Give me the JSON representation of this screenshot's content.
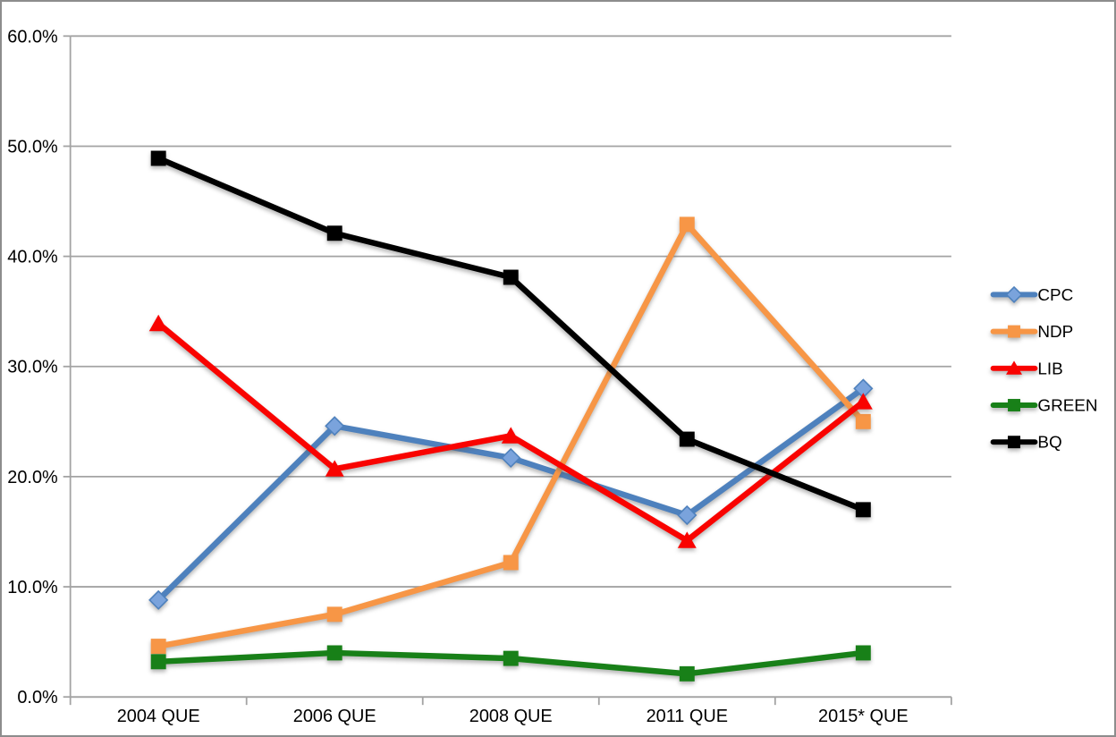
{
  "chart_data": {
    "type": "line",
    "title": "",
    "categories": [
      "2004 QUE",
      "2006 QUE",
      "2008 QUE",
      "2011 QUE",
      "2015* QUE"
    ],
    "y_axis": {
      "min": 0,
      "max": 60,
      "step": 10,
      "tick_labels": [
        "0.0%",
        "10.0%",
        "20.0%",
        "30.0%",
        "40.0%",
        "50.0%",
        "60.0%"
      ]
    },
    "grid": true,
    "legend_position": "right",
    "series": [
      {
        "name": "CPC",
        "color": "#4E81BD",
        "marker": "diamond",
        "marker_fill": "#7AA3DC",
        "values": [
          8.8,
          24.6,
          21.7,
          16.5,
          28.0
        ]
      },
      {
        "name": "NDP",
        "color": "#F79646",
        "marker": "square",
        "marker_fill": "#F79646",
        "values": [
          4.6,
          7.5,
          12.2,
          42.9,
          25.0
        ]
      },
      {
        "name": "LIB",
        "color": "#F90300",
        "marker": "triangle",
        "marker_fill": "#F90300",
        "values": [
          33.9,
          20.7,
          23.7,
          14.2,
          26.8
        ]
      },
      {
        "name": "GREEN",
        "color": "#188018",
        "marker": "square",
        "marker_fill": "#188018",
        "values": [
          3.2,
          4.0,
          3.5,
          2.1,
          4.0
        ]
      },
      {
        "name": "BQ",
        "color": "#000000",
        "marker": "square",
        "marker_fill": "#000000",
        "values": [
          48.9,
          42.1,
          38.1,
          23.4,
          17.0
        ]
      }
    ],
    "colors": {
      "gridline": "#A3A3A3",
      "axis": "#A3A3A3",
      "text": "#000000",
      "frame": "#8D8D8D",
      "background": "#FFFFFF"
    }
  }
}
